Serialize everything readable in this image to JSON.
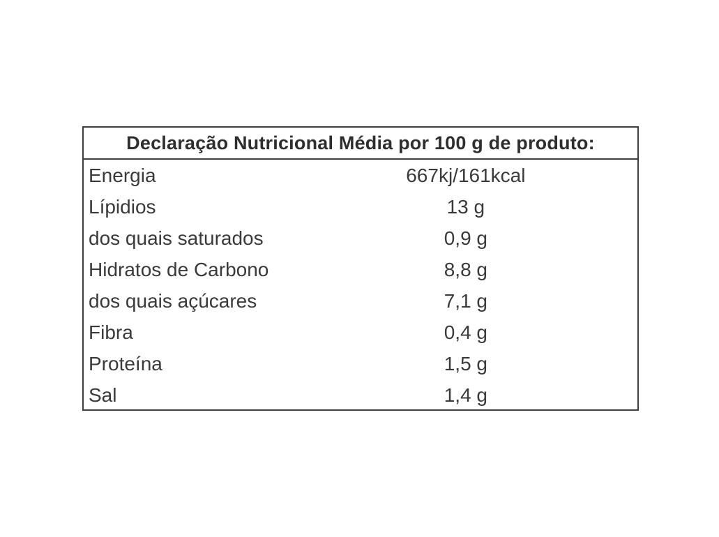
{
  "table": {
    "title": "Declaração Nutricional Média por 100 g de produto:",
    "rows": [
      {
        "label": "Energia",
        "value": "667kj/161kcal"
      },
      {
        "label": "Lípidios",
        "value": "13 g"
      },
      {
        "label": "dos quais saturados",
        "value": "0,9 g"
      },
      {
        "label": "Hidratos de Carbono",
        "value": "8,8 g"
      },
      {
        "label": "dos quais açúcares",
        "value": "7,1 g"
      },
      {
        "label": "Fibra",
        "value": "0,4 g"
      },
      {
        "label": "Proteína",
        "value": "1,5 g"
      },
      {
        "label": "Sal",
        "value": "1,4 g"
      }
    ],
    "colors": {
      "border": "#3f3f3f",
      "text": "#3a3a3a"
    }
  }
}
